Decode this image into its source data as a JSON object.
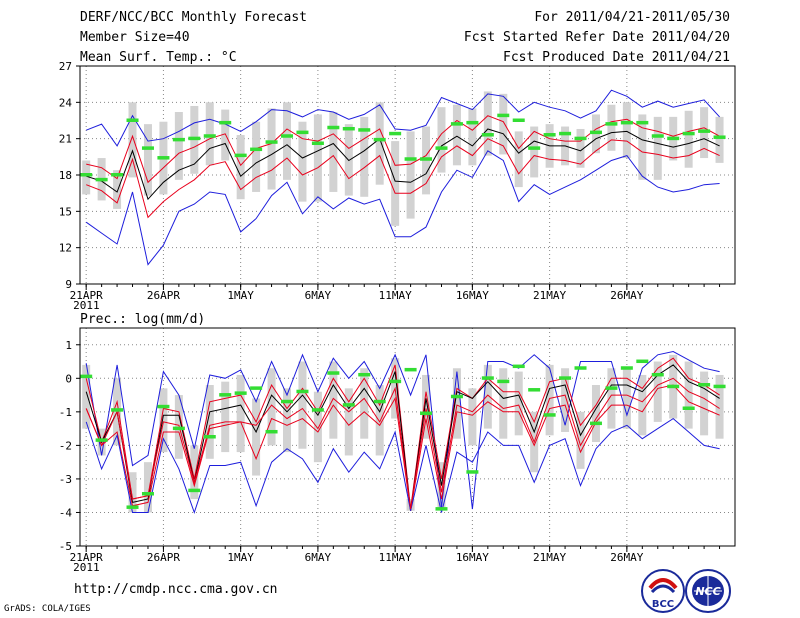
{
  "header": {
    "title": "DERF/NCC/BCC Monthly Forecast",
    "member_size": "Member Size=40",
    "variable": "Mean Surf. Temp.: °C",
    "forecast_period": "For 2011/04/21-2011/05/30",
    "started_refer": "Fcst Started Refer Date 2011/04/20",
    "produced": "Fcst Produced Date 2011/04/21"
  },
  "footer": {
    "url": "http://cmdp.ncc.cma.gov.cn",
    "credit": "GrADS: COLA/IGES",
    "logo_left_text": "BCC",
    "logo_right_text": "NCC"
  },
  "colors": {
    "mean": "#000000",
    "spread": "#e8001c",
    "extreme": "#1e1edc",
    "box": "#d2d2d2",
    "observed": "#33dd33",
    "grid": "#888888"
  },
  "chart_data": [
    {
      "type": "line",
      "title": "",
      "ylabel": "Mean Surf. Temp.: °C",
      "ylim": [
        9,
        27
      ],
      "yticks": [
        9,
        12,
        15,
        18,
        21,
        24,
        27
      ],
      "x_ticks": [
        {
          "day": 1,
          "label": "21APR",
          "sub": "2011"
        },
        {
          "day": 6,
          "label": "26APR",
          "sub": ""
        },
        {
          "day": 11,
          "label": "1MAY",
          "sub": ""
        },
        {
          "day": 16,
          "label": "6MAY",
          "sub": ""
        },
        {
          "day": 21,
          "label": "11MAY",
          "sub": ""
        },
        {
          "day": 26,
          "label": "16MAY",
          "sub": ""
        },
        {
          "day": 31,
          "label": "21MAY",
          "sub": ""
        },
        {
          "day": 36,
          "label": "26MAY",
          "sub": ""
        }
      ],
      "xlim": [
        0.6,
        43.0
      ],
      "days": [
        1,
        2,
        3,
        4,
        5,
        6,
        7,
        8,
        9,
        10,
        11,
        12,
        13,
        14,
        15,
        16,
        17,
        18,
        19,
        20,
        21,
        22,
        23,
        24,
        25,
        26,
        27,
        28,
        29,
        30,
        31,
        32,
        33,
        34,
        35,
        36,
        37,
        38,
        39,
        40,
        41,
        42
      ],
      "series": [
        {
          "name": "max",
          "role": "extreme",
          "values": [
            21.7,
            22.2,
            20.4,
            22.9,
            20.8,
            21.0,
            21.6,
            22.3,
            22.6,
            22.2,
            21.6,
            22.4,
            23.4,
            23.3,
            22.8,
            23.4,
            23.2,
            22.6,
            23.0,
            23.8,
            21.8,
            21.7,
            22.1,
            24.4,
            23.9,
            23.4,
            24.7,
            24.5,
            23.2,
            24.0,
            23.6,
            23.3,
            22.7,
            23.3,
            25.0,
            24.5,
            23.6,
            24.1,
            23.6,
            23.9,
            24.2,
            22.8
          ]
        },
        {
          "name": "upper",
          "role": "spread",
          "values": [
            18.9,
            18.6,
            17.7,
            21.2,
            17.4,
            18.6,
            19.8,
            20.3,
            21.0,
            21.4,
            18.8,
            20.2,
            20.6,
            21.8,
            21.0,
            20.8,
            21.4,
            20.2,
            21.0,
            21.8,
            18.8,
            18.9,
            19.6,
            21.4,
            22.5,
            21.7,
            22.9,
            22.4,
            20.2,
            21.6,
            21.0,
            20.8,
            20.8,
            21.8,
            22.4,
            22.6,
            21.9,
            21.6,
            21.2,
            21.6,
            21.9,
            21.2
          ]
        },
        {
          "name": "mean",
          "role": "mean",
          "values": [
            17.9,
            17.5,
            16.6,
            20.0,
            16.0,
            17.4,
            18.4,
            18.9,
            20.2,
            20.6,
            17.9,
            19.0,
            19.7,
            20.5,
            19.4,
            20.0,
            20.6,
            19.2,
            20.0,
            21.0,
            17.5,
            17.4,
            18.1,
            20.4,
            21.2,
            20.4,
            21.8,
            21.4,
            19.8,
            20.8,
            20.4,
            20.4,
            20.0,
            21.0,
            21.5,
            21.6,
            20.9,
            20.6,
            20.3,
            20.6,
            21.0,
            20.4
          ]
        },
        {
          "name": "lower",
          "role": "spread",
          "values": [
            17.2,
            16.7,
            15.7,
            19.3,
            14.5,
            15.8,
            16.8,
            17.6,
            18.8,
            19.1,
            16.8,
            17.8,
            18.4,
            19.4,
            18.0,
            18.6,
            19.6,
            17.7,
            18.6,
            19.6,
            16.5,
            16.5,
            17.3,
            19.5,
            20.4,
            19.6,
            21.0,
            20.4,
            18.1,
            19.6,
            19.3,
            19.2,
            18.9,
            20.0,
            20.9,
            20.8,
            19.9,
            19.7,
            19.4,
            19.6,
            20.2,
            19.6
          ]
        },
        {
          "name": "min",
          "role": "extreme",
          "values": [
            14.1,
            13.2,
            12.3,
            16.6,
            10.6,
            12.2,
            15.0,
            15.6,
            16.6,
            16.4,
            13.3,
            14.4,
            16.3,
            17.4,
            14.8,
            16.2,
            15.2,
            16.1,
            15.6,
            16.0,
            12.9,
            12.9,
            13.7,
            16.6,
            18.4,
            17.8,
            20.0,
            19.2,
            15.8,
            17.2,
            16.4,
            17.0,
            17.6,
            18.4,
            19.2,
            19.6,
            17.9,
            17.0,
            16.6,
            16.8,
            17.2,
            17.3
          ]
        }
      ],
      "boxes": {
        "top": [
          19.2,
          19.4,
          18.4,
          24.0,
          22.2,
          22.4,
          23.2,
          23.7,
          24.0,
          23.4,
          21.3,
          22.4,
          23.5,
          24.0,
          22.4,
          23.0,
          23.2,
          22.2,
          22.8,
          24.0,
          20.8,
          21.6,
          22.0,
          23.6,
          23.8,
          23.5,
          24.9,
          24.7,
          21.6,
          22.0,
          22.2,
          22.0,
          21.8,
          23.0,
          23.8,
          24.0,
          23.0,
          22.8,
          22.8,
          23.3,
          23.6,
          22.8
        ],
        "bottom": [
          16.4,
          15.9,
          15.2,
          17.8,
          16.3,
          16.4,
          17.6,
          18.1,
          18.8,
          19.2,
          16.0,
          16.6,
          16.8,
          17.6,
          15.8,
          15.8,
          16.6,
          16.3,
          16.2,
          17.2,
          13.8,
          14.4,
          16.4,
          18.2,
          18.8,
          18.8,
          19.6,
          19.7,
          17.0,
          17.8,
          18.6,
          18.8,
          18.6,
          19.8,
          20.0,
          19.4,
          17.6,
          17.6,
          19.2,
          18.6,
          19.4,
          19.0
        ]
      },
      "observed": [
        18.0,
        17.6,
        18.0,
        22.5,
        20.2,
        19.4,
        20.9,
        21.0,
        21.2,
        22.3,
        19.6,
        20.1,
        20.7,
        21.2,
        21.5,
        20.6,
        21.9,
        21.8,
        21.7,
        20.9,
        21.4,
        19.3,
        19.3,
        20.2,
        22.2,
        22.3,
        21.3,
        22.9,
        22.5,
        20.2,
        21.3,
        21.4,
        21.0,
        21.5,
        22.2,
        22.3,
        22.3,
        21.2,
        21.0,
        21.4,
        21.6,
        21.1
      ]
    },
    {
      "type": "line",
      "title": "",
      "ylabel": "Prec.: log(mm/d)",
      "ylim": [
        -5,
        1.5
      ],
      "yticks": [
        -5,
        -4,
        -3,
        -2,
        -1,
        0,
        1
      ],
      "x_ticks": [
        {
          "day": 1,
          "label": "21APR",
          "sub": "2011"
        },
        {
          "day": 6,
          "label": "26APR",
          "sub": ""
        },
        {
          "day": 11,
          "label": "1MAY",
          "sub": ""
        },
        {
          "day": 16,
          "label": "6MAY",
          "sub": ""
        },
        {
          "day": 21,
          "label": "11MAY",
          "sub": ""
        },
        {
          "day": 26,
          "label": "16MAY",
          "sub": ""
        },
        {
          "day": 31,
          "label": "21MAY",
          "sub": ""
        },
        {
          "day": 36,
          "label": "26MAY",
          "sub": ""
        }
      ],
      "xlim": [
        0.6,
        43.0
      ],
      "days": [
        1,
        2,
        3,
        4,
        5,
        6,
        7,
        8,
        9,
        10,
        11,
        12,
        13,
        14,
        15,
        16,
        17,
        18,
        19,
        20,
        21,
        22,
        23,
        24,
        25,
        26,
        27,
        28,
        29,
        30,
        31,
        32,
        33,
        34,
        35,
        36,
        37,
        38,
        39,
        40,
        41,
        42
      ],
      "series": [
        {
          "name": "max",
          "role": "extreme",
          "values": [
            0.45,
            -2.3,
            0.4,
            -2.6,
            -2.3,
            0.2,
            -0.5,
            -2.1,
            0.1,
            0.0,
            0.25,
            -0.7,
            0.5,
            -0.5,
            0.7,
            -0.4,
            0.6,
            0.0,
            0.5,
            -0.3,
            0.7,
            -0.5,
            0.7,
            -3.85,
            0.2,
            -3.9,
            0.5,
            0.5,
            0.3,
            0.7,
            0.3,
            -1.4,
            0.5,
            0.5,
            0.5,
            -1.1,
            0.3,
            0.7,
            0.8,
            0.55,
            0.3,
            0.2
          ]
        },
        {
          "name": "upper",
          "role": "spread",
          "values": [
            0.0,
            -1.9,
            -0.7,
            -3.6,
            -3.5,
            -0.9,
            -1.0,
            -3.0,
            -0.7,
            -0.6,
            -0.5,
            -1.3,
            -0.2,
            -0.9,
            -0.3,
            -1.0,
            0.0,
            -0.7,
            0.0,
            -0.8,
            0.4,
            -3.9,
            -0.4,
            -3.0,
            -0.3,
            -0.6,
            0.0,
            -0.4,
            -0.4,
            -1.3,
            -0.1,
            0.0,
            -1.4,
            -0.8,
            0.0,
            0.0,
            -0.3,
            0.3,
            0.6,
            0.0,
            -0.2,
            -0.5
          ]
        },
        {
          "name": "mean",
          "role": "mean",
          "values": [
            -0.4,
            -1.9,
            -1.0,
            -3.7,
            -3.6,
            -1.1,
            -1.1,
            -3.1,
            -1.0,
            -0.9,
            -0.8,
            -1.6,
            -0.5,
            -1.0,
            -0.5,
            -1.1,
            -0.2,
            -0.9,
            -0.3,
            -1.0,
            0.2,
            -3.95,
            -0.6,
            -3.2,
            -0.4,
            -0.6,
            -0.1,
            -0.6,
            -0.5,
            -1.6,
            -0.3,
            -0.2,
            -1.7,
            -0.9,
            -0.2,
            -0.2,
            -0.4,
            0.1,
            0.4,
            -0.1,
            -0.3,
            -0.6
          ]
        },
        {
          "name": "lower",
          "role": "spread",
          "values": [
            -0.9,
            -2.0,
            -1.6,
            -3.8,
            -3.7,
            -1.6,
            -1.6,
            -3.2,
            -1.5,
            -1.4,
            -1.3,
            -2.4,
            -1.2,
            -1.4,
            -1.2,
            -1.6,
            -0.8,
            -1.4,
            -1.0,
            -1.4,
            -0.6,
            -3.95,
            -1.2,
            -3.6,
            -1.0,
            -1.1,
            -0.7,
            -1.0,
            -1.0,
            -2.0,
            -0.9,
            -0.8,
            -2.2,
            -1.3,
            -0.8,
            -0.8,
            -1.0,
            -0.3,
            -0.2,
            -0.7,
            -0.9,
            -1.1
          ]
        },
        {
          "name": "min",
          "role": "extreme",
          "values": [
            -1.3,
            -2.7,
            -1.7,
            -4.0,
            -4.0,
            -1.8,
            -2.7,
            -4.0,
            -2.6,
            -2.6,
            -2.5,
            -3.8,
            -2.5,
            -2.1,
            -2.4,
            -3.1,
            -2.1,
            -2.8,
            -2.2,
            -2.7,
            -1.6,
            -3.95,
            -2.0,
            -4.0,
            -2.2,
            -2.5,
            -1.6,
            -2.0,
            -2.0,
            -3.1,
            -2.0,
            -1.8,
            -3.2,
            -2.1,
            -1.6,
            -1.4,
            -1.8,
            -1.5,
            -1.2,
            -1.6,
            -2.0,
            -2.1
          ]
        },
        {
          "name": "upper2",
          "role": "spread",
          "values": [
            -0.9,
            -2.0,
            -1.0,
            -3.6,
            -3.5,
            -1.3,
            -1.4,
            -3.1,
            -1.4,
            -1.3,
            -1.3,
            -1.4,
            -0.8,
            -1.2,
            -0.9,
            -1.5,
            -0.6,
            -1.0,
            -0.6,
            -1.3,
            -0.3,
            -3.9,
            -0.9,
            -3.4,
            -0.8,
            -1.0,
            -0.5,
            -0.9,
            -0.8,
            -1.9,
            -0.6,
            -0.5,
            -2.0,
            -1.2,
            -0.5,
            -0.5,
            -0.7,
            -0.2,
            0.0,
            -0.4,
            -0.6,
            -0.9
          ]
        }
      ],
      "boxes": {
        "top": [
          0.4,
          -1.5,
          0.0,
          -2.8,
          -2.5,
          -0.3,
          -0.5,
          -2.0,
          -0.2,
          -0.1,
          0.1,
          -0.6,
          0.3,
          -0.3,
          0.5,
          -0.4,
          0.5,
          -0.3,
          0.3,
          -0.2,
          0.6,
          -3.6,
          0.1,
          -2.5,
          0.3,
          -0.3,
          0.4,
          0.3,
          0.2,
          -1.0,
          0.4,
          0.3,
          -1.0,
          -0.2,
          0.3,
          0.3,
          0.1,
          0.5,
          0.7,
          0.5,
          0.2,
          0.1
        ],
        "bottom": [
          -1.5,
          -2.3,
          -2.0,
          -4.0,
          -4.0,
          -2.2,
          -2.4,
          -3.6,
          -2.4,
          -2.2,
          -2.2,
          -2.9,
          -2.0,
          -2.2,
          -2.1,
          -2.5,
          -1.8,
          -2.3,
          -1.8,
          -2.3,
          -1.2,
          -3.95,
          -1.8,
          -3.9,
          -1.8,
          -2.0,
          -1.5,
          -1.8,
          -1.7,
          -2.8,
          -1.7,
          -1.6,
          -2.7,
          -1.9,
          -1.5,
          -1.5,
          -1.7,
          -1.3,
          -1.2,
          -1.5,
          -1.7,
          -1.8
        ]
      },
      "observed": [
        0.05,
        -1.85,
        -0.95,
        -3.85,
        -3.45,
        -0.85,
        -1.5,
        -3.35,
        -1.75,
        -0.5,
        -0.45,
        -0.3,
        -1.6,
        -0.7,
        -0.4,
        -0.95,
        0.15,
        -0.8,
        0.1,
        -0.7,
        -0.1,
        0.25,
        -1.05,
        -3.9,
        -0.55,
        -2.8,
        0.0,
        -0.1,
        0.35,
        -0.35,
        -1.1,
        0.0,
        0.3,
        -1.35,
        -0.3,
        0.3,
        0.5,
        0.1,
        -0.25,
        -0.9,
        -0.2,
        -0.25
      ]
    }
  ]
}
